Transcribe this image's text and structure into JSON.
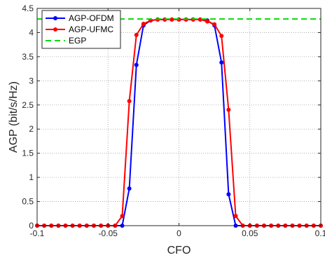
{
  "chart_data": {
    "type": "line",
    "xlabel": "CFO",
    "ylabel": "AGP (bit/s/Hz)",
    "xlim": [
      -0.1,
      0.1
    ],
    "ylim": [
      0,
      4.5
    ],
    "xticks": [
      -0.1,
      -0.05,
      0,
      0.05,
      0.1
    ],
    "xtick_labels": [
      "-0.1",
      "-0.05",
      "0",
      "0.05",
      "0.1"
    ],
    "yticks": [
      0,
      0.5,
      1,
      1.5,
      2,
      2.5,
      3,
      3.5,
      4,
      4.5
    ],
    "ytick_labels": [
      "0",
      "0.5",
      "1",
      "1.5",
      "2",
      "2.5",
      "3",
      "3.5",
      "4",
      "4.5"
    ],
    "grid": true,
    "legend_position": "top-left",
    "x": [
      -0.1,
      -0.095,
      -0.09,
      -0.085,
      -0.08,
      -0.075,
      -0.07,
      -0.065,
      -0.06,
      -0.055,
      -0.05,
      -0.045,
      -0.04,
      -0.035,
      -0.03,
      -0.025,
      -0.02,
      -0.015,
      -0.01,
      -0.005,
      0,
      0.005,
      0.01,
      0.015,
      0.02,
      0.025,
      0.03,
      0.035,
      0.04,
      0.045,
      0.05,
      0.055,
      0.06,
      0.065,
      0.07,
      0.075,
      0.08,
      0.085,
      0.09,
      0.095,
      0.1
    ],
    "series": [
      {
        "name": "AGP-OFDM",
        "color": "#0000ff",
        "style": "solid",
        "marker": "circle",
        "values": [
          0,
          0,
          0,
          0,
          0,
          0,
          0,
          0,
          0,
          0,
          0,
          0,
          0,
          0.77,
          3.33,
          4.15,
          4.25,
          4.27,
          4.27,
          4.27,
          4.27,
          4.27,
          4.27,
          4.27,
          4.25,
          4.15,
          3.38,
          0.65,
          0,
          0,
          0,
          0,
          0,
          0,
          0,
          0,
          0,
          0,
          0,
          0,
          0
        ]
      },
      {
        "name": "AGP-UFMC",
        "color": "#ff0000",
        "style": "solid",
        "marker": "circle",
        "values": [
          0,
          0,
          0,
          0,
          0,
          0,
          0,
          0,
          0,
          0,
          0,
          0,
          0.2,
          2.58,
          3.95,
          4.18,
          4.25,
          4.27,
          4.27,
          4.27,
          4.27,
          4.27,
          4.27,
          4.27,
          4.23,
          4.17,
          3.93,
          2.4,
          0.2,
          0,
          0,
          0,
          0,
          0,
          0,
          0,
          0,
          0,
          0,
          0,
          0
        ]
      },
      {
        "name": "EGP",
        "color": "#00dd00",
        "style": "dashed",
        "constant": 4.28
      }
    ]
  }
}
